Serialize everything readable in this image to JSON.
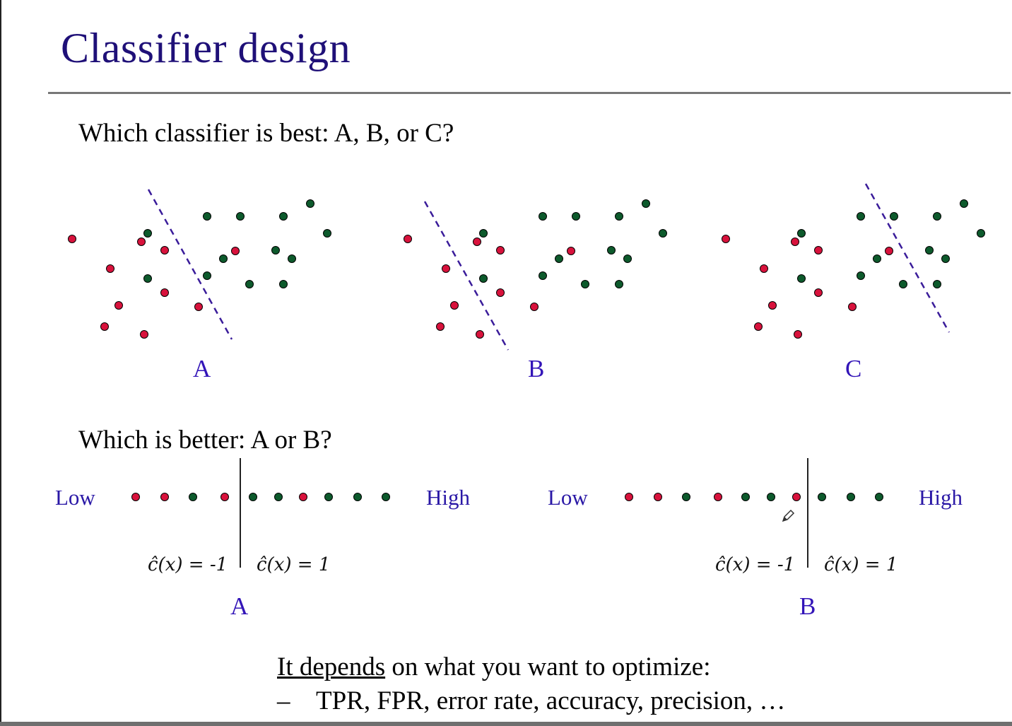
{
  "slide": {
    "title": "Classifier design",
    "question_1": "Which classifier is best: A, B, or C?",
    "question_2": "Which is better: A or B?",
    "conclusion_underlined": "It depends",
    "conclusion_rest": " on what you want to optimize:",
    "bullet_dash": "–",
    "bullet_text": "TPR, FPR, error rate, accuracy, precision, …"
  },
  "colors": {
    "title": "#1f1078",
    "label": "#3315b8",
    "negative_class": "#d8123c",
    "positive_class": "#0d5a2c",
    "boundary": "#3a1c9a"
  },
  "scatter_panels": [
    {
      "label": "A"
    },
    {
      "label": "B"
    },
    {
      "label": "C"
    }
  ],
  "threshold_panels": [
    {
      "label": "A",
      "low_label": "Low",
      "high_label": "High",
      "neg_label": "ĉ(x) = -1",
      "pos_label": "ĉ(x) = 1",
      "sequence": [
        "red",
        "red",
        "green",
        "red",
        "green",
        "green",
        "red",
        "green",
        "green",
        "green"
      ],
      "threshold_after_index": 3
    },
    {
      "label": "B",
      "low_label": "Low",
      "high_label": "High",
      "neg_label": "ĉ(x) = -1",
      "pos_label": "ĉ(x) = 1",
      "sequence": [
        "red",
        "red",
        "green",
        "red",
        "green",
        "green",
        "red",
        "green",
        "green",
        "green"
      ],
      "threshold_after_index": 6
    }
  ],
  "icons": {
    "cursor": "pen-cursor-icon"
  }
}
